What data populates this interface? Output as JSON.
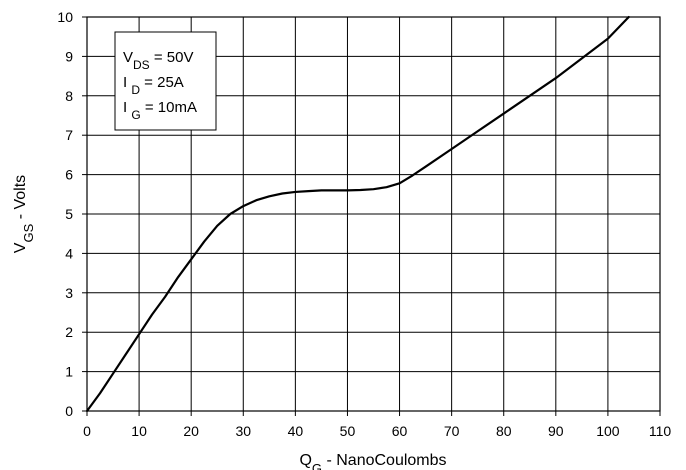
{
  "chart_data": {
    "type": "line",
    "title": "",
    "xlabel": {
      "main": "Q",
      "sub": "G",
      "suffix": " - NanoCoulombs"
    },
    "ylabel": {
      "main": "V",
      "sub": "GS",
      "suffix": " - Volts"
    },
    "xlim": [
      0,
      110
    ],
    "ylim": [
      0,
      10
    ],
    "x_ticks": [
      0,
      10,
      20,
      30,
      40,
      50,
      60,
      70,
      80,
      90,
      100,
      110
    ],
    "y_ticks": [
      0,
      1,
      2,
      3,
      4,
      5,
      6,
      7,
      8,
      9,
      10
    ],
    "grid": true,
    "series": [
      {
        "x": [
          0,
          2.5,
          5,
          7.5,
          10,
          12.5,
          15,
          17.5,
          20,
          22.5,
          25,
          27.5,
          30,
          32.5,
          35,
          37.5,
          40,
          42.5,
          45,
          47.5,
          50,
          52.5,
          55,
          57.5,
          60,
          62.5,
          65,
          70,
          75,
          80,
          85,
          90,
          95,
          100,
          104
        ],
        "y": [
          0,
          0.45,
          0.95,
          1.45,
          1.95,
          2.45,
          2.9,
          3.4,
          3.85,
          4.3,
          4.7,
          5.0,
          5.2,
          5.35,
          5.45,
          5.52,
          5.56,
          5.58,
          5.6,
          5.6,
          5.6,
          5.61,
          5.63,
          5.68,
          5.78,
          5.98,
          6.2,
          6.65,
          7.1,
          7.55,
          8.0,
          8.45,
          8.95,
          9.45,
          10.0
        ],
        "color": "#000000"
      }
    ],
    "legend": {
      "placement": "top-left",
      "entries": [
        {
          "main": "V",
          "sub": "DS",
          "value": " = 50V"
        },
        {
          "main": "I ",
          "sub": "D",
          "value": " = 25A"
        },
        {
          "main": "I ",
          "sub": "G",
          "value": " = 10mA"
        }
      ]
    }
  }
}
